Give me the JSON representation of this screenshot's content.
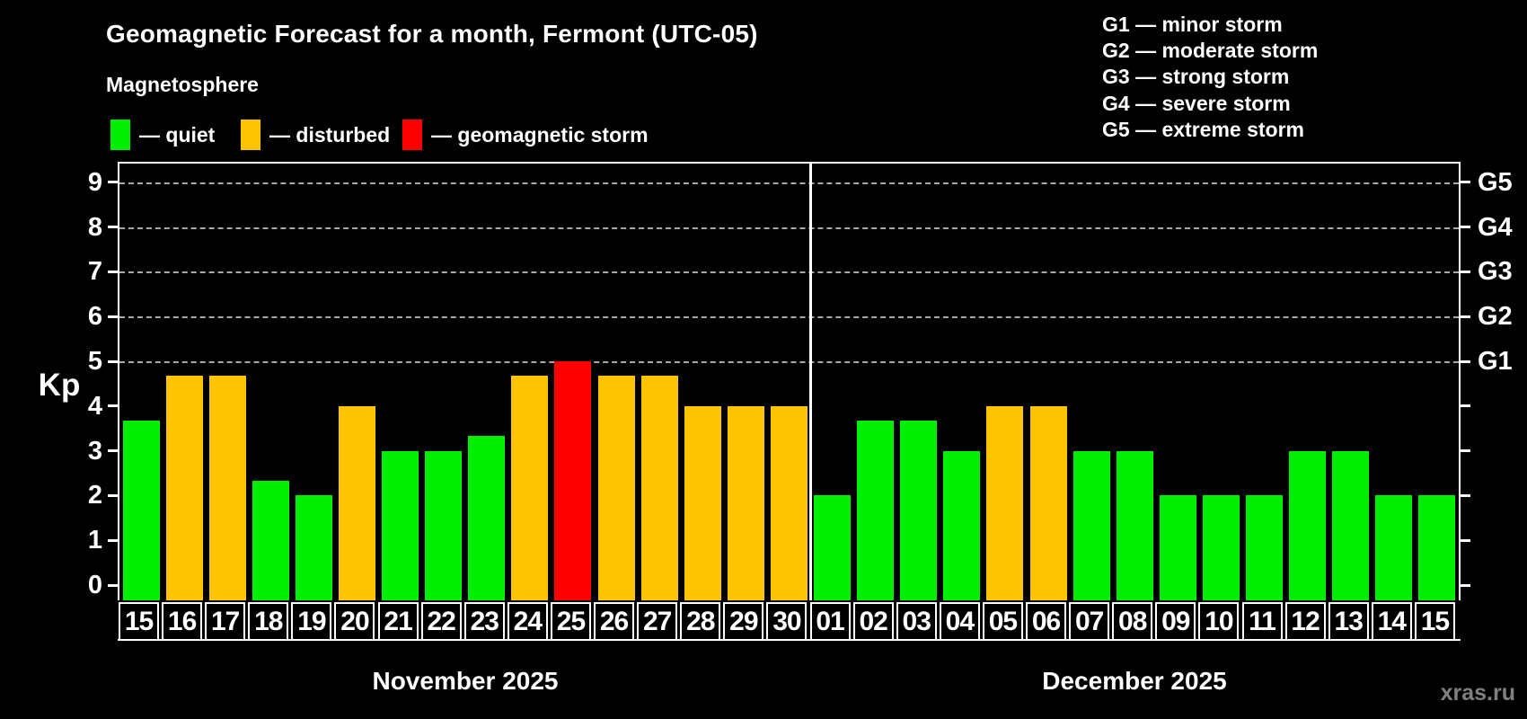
{
  "header": {
    "title": "Geomagnetic Forecast for a month, Fermont (UTC-05)",
    "subtitle": "Magnetosphere"
  },
  "legend": {
    "items": [
      {
        "status": "quiet",
        "label": "— quiet",
        "color": "#00ee00"
      },
      {
        "status": "disturbed",
        "label": "— disturbed",
        "color": "#ffc300"
      },
      {
        "status": "storm",
        "label": "— geomagnetic storm",
        "color": "#ff0000"
      }
    ]
  },
  "storm_scale": {
    "items": [
      {
        "code": "G1",
        "label": "G1 — minor storm"
      },
      {
        "code": "G2",
        "label": "G2 — moderate storm"
      },
      {
        "code": "G3",
        "label": "G3 — strong storm"
      },
      {
        "code": "G4",
        "label": "G4 — severe storm"
      },
      {
        "code": "G5",
        "label": "G5 — extreme storm"
      }
    ]
  },
  "axes": {
    "y_label": "Kp",
    "y_ticks": [
      "0",
      "1",
      "2",
      "3",
      "4",
      "5",
      "6",
      "7",
      "8",
      "9"
    ],
    "right_labels": [
      {
        "kp": 5,
        "label": "G1"
      },
      {
        "kp": 6,
        "label": "G2"
      },
      {
        "kp": 7,
        "label": "G3"
      },
      {
        "kp": 8,
        "label": "G4"
      },
      {
        "kp": 9,
        "label": "G5"
      }
    ]
  },
  "months": [
    {
      "label": "November 2025",
      "days": 16
    },
    {
      "label": "December 2025",
      "days": 15
    }
  ],
  "watermark": "xras.ru",
  "colors": {
    "quiet": "#00ee00",
    "disturbed": "#ffc300",
    "storm": "#ff0000",
    "grid": "#a9a9a9",
    "axis": "#ffffff",
    "watermark": "#808080"
  },
  "chart_data": {
    "type": "bar",
    "title": "Geomagnetic Forecast for a month, Fermont (UTC-05)",
    "xlabel": "",
    "ylabel": "Kp",
    "ylim": [
      0,
      9
    ],
    "grid": "horizontal dashed lines at Kp 5,6,7,8,9 (G1–G5)",
    "legend_position": "top-left",
    "series": [
      {
        "name": "Kp forecast",
        "points": [
          {
            "month": "November 2025",
            "day": "15",
            "kp": 3.67,
            "status": "quiet"
          },
          {
            "month": "November 2025",
            "day": "16",
            "kp": 4.67,
            "status": "disturbed"
          },
          {
            "month": "November 2025",
            "day": "17",
            "kp": 4.67,
            "status": "disturbed"
          },
          {
            "month": "November 2025",
            "day": "18",
            "kp": 2.33,
            "status": "quiet"
          },
          {
            "month": "November 2025",
            "day": "19",
            "kp": 2,
            "status": "quiet"
          },
          {
            "month": "November 2025",
            "day": "20",
            "kp": 4,
            "status": "disturbed"
          },
          {
            "month": "November 2025",
            "day": "21",
            "kp": 3,
            "status": "quiet"
          },
          {
            "month": "November 2025",
            "day": "22",
            "kp": 3,
            "status": "quiet"
          },
          {
            "month": "November 2025",
            "day": "23",
            "kp": 3.33,
            "status": "quiet"
          },
          {
            "month": "November 2025",
            "day": "24",
            "kp": 4.67,
            "status": "disturbed"
          },
          {
            "month": "November 2025",
            "day": "25",
            "kp": 5,
            "status": "storm"
          },
          {
            "month": "November 2025",
            "day": "26",
            "kp": 4.67,
            "status": "disturbed"
          },
          {
            "month": "November 2025",
            "day": "27",
            "kp": 4.67,
            "status": "disturbed"
          },
          {
            "month": "November 2025",
            "day": "28",
            "kp": 4,
            "status": "disturbed"
          },
          {
            "month": "November 2025",
            "day": "29",
            "kp": 4,
            "status": "disturbed"
          },
          {
            "month": "November 2025",
            "day": "30",
            "kp": 4,
            "status": "disturbed"
          },
          {
            "month": "December 2025",
            "day": "01",
            "kp": 2,
            "status": "quiet"
          },
          {
            "month": "December 2025",
            "day": "02",
            "kp": 3.67,
            "status": "quiet"
          },
          {
            "month": "December 2025",
            "day": "03",
            "kp": 3.67,
            "status": "quiet"
          },
          {
            "month": "December 2025",
            "day": "04",
            "kp": 3,
            "status": "quiet"
          },
          {
            "month": "December 2025",
            "day": "05",
            "kp": 4,
            "status": "disturbed"
          },
          {
            "month": "December 2025",
            "day": "06",
            "kp": 4,
            "status": "disturbed"
          },
          {
            "month": "December 2025",
            "day": "07",
            "kp": 3,
            "status": "quiet"
          },
          {
            "month": "December 2025",
            "day": "08",
            "kp": 3,
            "status": "quiet"
          },
          {
            "month": "December 2025",
            "day": "09",
            "kp": 2,
            "status": "quiet"
          },
          {
            "month": "December 2025",
            "day": "10",
            "kp": 2,
            "status": "quiet"
          },
          {
            "month": "December 2025",
            "day": "11",
            "kp": 2,
            "status": "quiet"
          },
          {
            "month": "December 2025",
            "day": "12",
            "kp": 3,
            "status": "quiet"
          },
          {
            "month": "December 2025",
            "day": "13",
            "kp": 3,
            "status": "quiet"
          },
          {
            "month": "December 2025",
            "day": "14",
            "kp": 2,
            "status": "quiet"
          },
          {
            "month": "December 2025",
            "day": "15",
            "kp": 2,
            "status": "quiet"
          }
        ]
      }
    ]
  }
}
